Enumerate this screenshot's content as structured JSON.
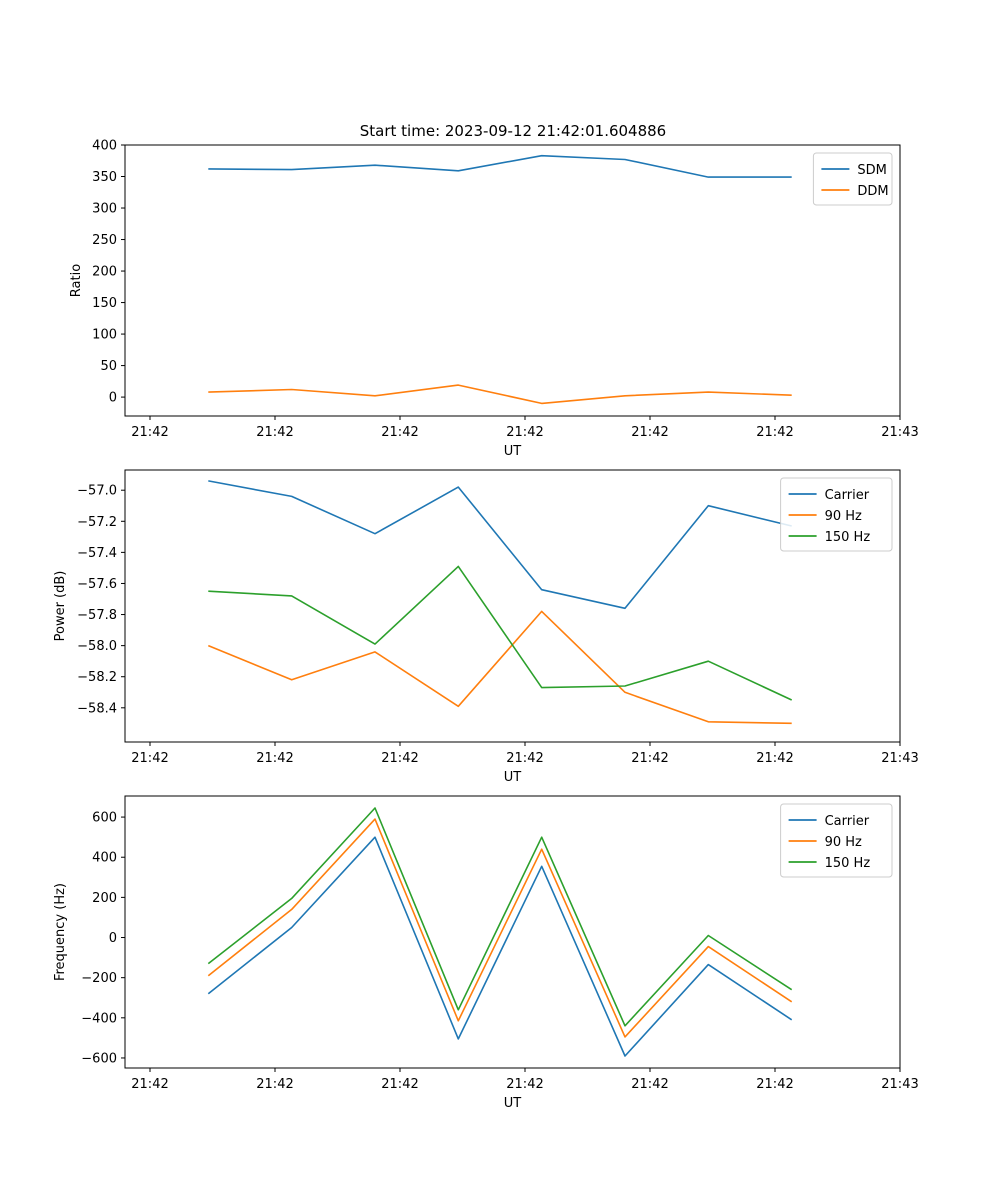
{
  "figure_title": "Start time: 2023-09-12 21:42:01.604886",
  "chart_data": [
    {
      "type": "line",
      "ylabel": "Ratio",
      "xlabel": "UT",
      "ylim": [
        -30,
        400
      ],
      "yticks": [
        0,
        50,
        100,
        150,
        200,
        250,
        300,
        350,
        400
      ],
      "ytick_labels": [
        "0",
        "50",
        "100",
        "150",
        "200",
        "250",
        "300",
        "350",
        "400"
      ],
      "xlim": [
        -0.3,
        9
      ],
      "xticks": [
        0,
        1.5,
        3,
        4.5,
        6,
        7.5,
        9
      ],
      "xtick_labels": [
        "21:42",
        "21:42",
        "21:42",
        "21:42",
        "21:42",
        "21:42",
        "21:43"
      ],
      "x": [
        0.7,
        1.7,
        2.7,
        3.7,
        4.7,
        5.7,
        6.7,
        7.7
      ],
      "legend_position": "top-right",
      "series": [
        {
          "name": "SDM",
          "color": "#1f77b4",
          "values": [
            362,
            361,
            368,
            359,
            383,
            377,
            349,
            349
          ]
        },
        {
          "name": "DDM",
          "color": "#ff7f0e",
          "values": [
            8,
            12,
            2,
            19,
            -10,
            2,
            8,
            3
          ]
        }
      ]
    },
    {
      "type": "line",
      "ylabel": "Power (dB)",
      "xlabel": "UT",
      "ylim": [
        -58.62,
        -56.87
      ],
      "yticks": [
        -58.4,
        -58.2,
        -58.0,
        -57.8,
        -57.6,
        -57.4,
        -57.2,
        -57.0
      ],
      "ytick_labels": [
        "−58.4",
        "−58.2",
        "−58.0",
        "−57.8",
        "−57.6",
        "−57.4",
        "−57.2",
        "−57.0"
      ],
      "xlim": [
        -0.3,
        9
      ],
      "xticks": [
        0,
        1.5,
        3,
        4.5,
        6,
        7.5,
        9
      ],
      "xtick_labels": [
        "21:42",
        "21:42",
        "21:42",
        "21:42",
        "21:42",
        "21:42",
        "21:43"
      ],
      "x": [
        0.7,
        1.7,
        2.7,
        3.7,
        4.7,
        5.7,
        6.7,
        7.7
      ],
      "legend_position": "top-right",
      "series": [
        {
          "name": "Carrier",
          "color": "#1f77b4",
          "values": [
            -56.94,
            -57.04,
            -57.28,
            -56.98,
            -57.64,
            -57.76,
            -57.1,
            -57.23
          ]
        },
        {
          "name": "90 Hz",
          "color": "#ff7f0e",
          "values": [
            -58.0,
            -58.22,
            -58.04,
            -58.39,
            -57.78,
            -58.3,
            -58.49,
            -58.5
          ]
        },
        {
          "name": "150 Hz",
          "color": "#2ca02c",
          "values": [
            -57.65,
            -57.68,
            -57.99,
            -57.49,
            -58.27,
            -58.26,
            -58.1,
            -58.35
          ]
        }
      ]
    },
    {
      "type": "line",
      "ylabel": "Frequency (Hz)",
      "xlabel": "UT",
      "ylim": [
        -650,
        705
      ],
      "yticks": [
        -600,
        -400,
        -200,
        0,
        200,
        400,
        600
      ],
      "ytick_labels": [
        "−600",
        "−400",
        "−200",
        "0",
        "200",
        "400",
        "600"
      ],
      "xlim": [
        -0.3,
        9
      ],
      "xticks": [
        0,
        1.5,
        3,
        4.5,
        6,
        7.5,
        9
      ],
      "xtick_labels": [
        "21:42",
        "21:42",
        "21:42",
        "21:42",
        "21:42",
        "21:42",
        "21:43"
      ],
      "x": [
        0.7,
        1.7,
        2.7,
        3.7,
        4.7,
        5.7,
        6.7,
        7.7
      ],
      "legend_position": "top-right",
      "series": [
        {
          "name": "Carrier",
          "color": "#1f77b4",
          "values": [
            -280,
            50,
            500,
            -505,
            355,
            -590,
            -135,
            -410
          ]
        },
        {
          "name": "90 Hz",
          "color": "#ff7f0e",
          "values": [
            -190,
            140,
            590,
            -415,
            440,
            -495,
            -45,
            -320
          ]
        },
        {
          "name": "150 Hz",
          "color": "#2ca02c",
          "values": [
            -130,
            195,
            645,
            -360,
            500,
            -440,
            10,
            -260
          ]
        }
      ]
    }
  ]
}
